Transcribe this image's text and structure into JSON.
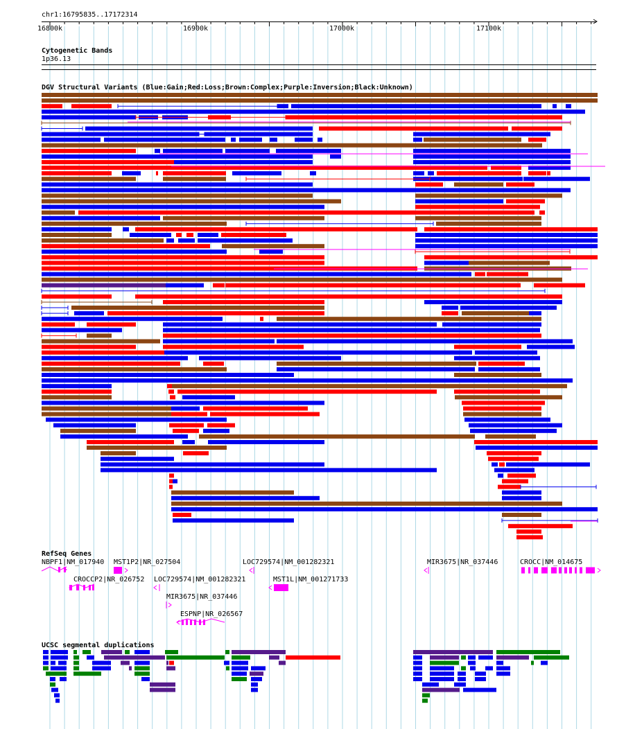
{
  "location": "chr1:16795835..17172314",
  "ruler": {
    "ticks": [
      {
        "label": "16800k",
        "pos": 16800000
      },
      {
        "label": "16900k",
        "pos": 16900000
      },
      {
        "label": "17000k",
        "pos": 17000000
      },
      {
        "label": "17100k",
        "pos": 17100000
      }
    ]
  },
  "tracks": {
    "cytoband": {
      "title": "Cytogenetic Bands",
      "band": "1p36.13"
    },
    "dgv": {
      "title": "DGV Structural Variants (Blue:Gain;Red:Loss;Brown:Complex;Purple:Inversion;Black:Unknown)"
    },
    "refseq": {
      "title": "RefSeq Genes",
      "genes": [
        {
          "label": "NBPF1|NM_017940"
        },
        {
          "label": "MST1P2|NR_027504"
        },
        {
          "label": "LOC729574|NM_001282321"
        },
        {
          "label": "MIR3675|NR_037446"
        },
        {
          "label": "CROCC|NM_014675"
        },
        {
          "label": "CROCCP2|NR_026752"
        },
        {
          "label": "LOC729574|NM_001282321"
        },
        {
          "label": "MST1L|NM_001271733"
        },
        {
          "label": "MIR3675|NR_037446"
        },
        {
          "label": "ESPNP|NR_026567"
        }
      ]
    },
    "segdup": {
      "title": "UCSC segmental duplications"
    }
  },
  "colors": {
    "gain": "#0000ee",
    "loss": "#ff0000",
    "complex": "#8b4513",
    "inversion": "#551a8b",
    "gene": "#ff00ff",
    "segdup_green": "#008000",
    "grid": "#add8e6"
  }
}
